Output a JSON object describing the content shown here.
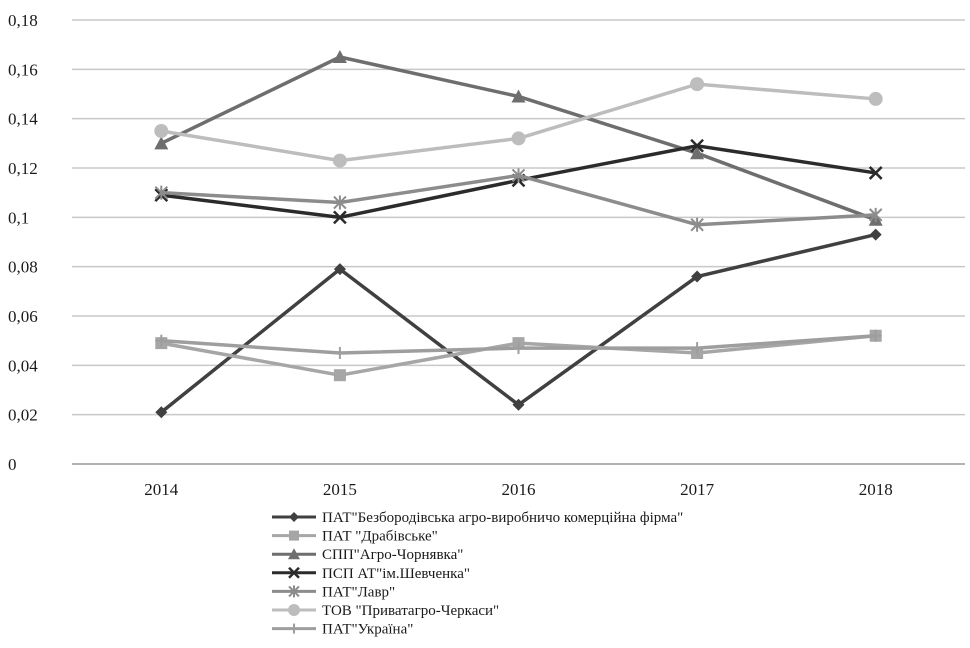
{
  "chart_data": {
    "type": "line",
    "title": "",
    "xlabel": "",
    "ylabel": "",
    "categories": [
      "2014",
      "2015",
      "2016",
      "2017",
      "2018"
    ],
    "ylim": [
      0,
      0.18
    ],
    "yticks": [
      "0",
      "0,02",
      "0,04",
      "0,06",
      "0,08",
      "0,1",
      "0,12",
      "0,14",
      "0,16",
      "0,18"
    ],
    "grid": "horizontal",
    "legend_position": "bottom",
    "series": [
      {
        "name": "ПАТ\"Безбородівська агро-виробничо комерційна фірма\"",
        "values": [
          0.021,
          0.079,
          0.024,
          0.076,
          0.093
        ],
        "color": "#404040",
        "marker": "diamond"
      },
      {
        "name": "ПАТ \"Драбівське\"",
        "values": [
          0.049,
          0.036,
          0.049,
          0.045,
          0.052
        ],
        "color": "#a6a6a6",
        "marker": "square"
      },
      {
        "name": "СПП\"Агро-Чорнявка\"",
        "values": [
          0.13,
          0.165,
          0.149,
          0.126,
          0.099
        ],
        "color": "#6e6e6e",
        "marker": "triangle"
      },
      {
        "name": "ПСП АТ\"ім.Шевченка\"",
        "values": [
          0.109,
          0.1,
          0.115,
          0.129,
          0.118
        ],
        "color": "#2b2b2b",
        "marker": "x"
      },
      {
        "name": "ПАТ\"Лавр\"",
        "values": [
          0.11,
          0.106,
          0.117,
          0.097,
          0.101
        ],
        "color": "#8c8c8c",
        "marker": "asterisk"
      },
      {
        "name": "ТОВ \"Приватагро-Черкаси\"",
        "values": [
          0.135,
          0.123,
          0.132,
          0.154,
          0.148
        ],
        "color": "#bdbdbd",
        "marker": "circle"
      },
      {
        "name": "ПАТ\"Україна\"",
        "values": [
          0.05,
          0.045,
          0.047,
          0.047,
          0.052
        ],
        "color": "#9e9e9e",
        "marker": "plus"
      }
    ]
  }
}
